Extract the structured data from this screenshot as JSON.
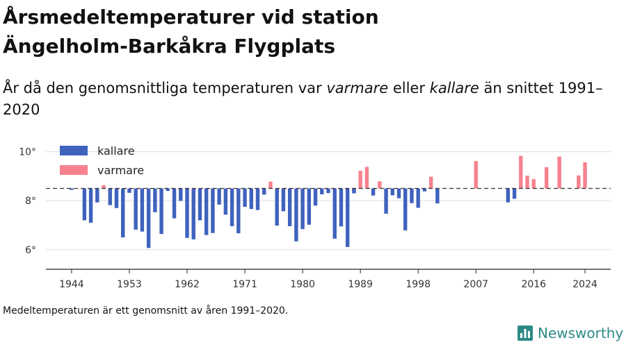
{
  "title_line1": "Årsmedeltemperaturer vid station",
  "title_line2": "Ängelholm-Barkåkra Flygplats",
  "subtitle": {
    "part1": "År då den genomsnittliga temperaturen var ",
    "warm": "varmare",
    "part2": " eller ",
    "cold": "kallare",
    "part3": " än snittet 1991–2020"
  },
  "note": "Medeltemperaturen är ett genomsnitt av åren 1991–2020.",
  "brand": {
    "name": "Newsworthy",
    "icon": "bar-chart-logo-icon",
    "color": "#2e8a86"
  },
  "chart_data": {
    "type": "bar",
    "baseline": 8.5,
    "baseline_style": "dashed",
    "ylim": [
      5.2,
      10.3
    ],
    "yticks": [
      6,
      8,
      10
    ],
    "ytick_labels": [
      "6°",
      "8°",
      "10°"
    ],
    "xlim": [
      1940,
      2028
    ],
    "xticks": [
      1944,
      1953,
      1962,
      1971,
      1980,
      1989,
      1998,
      2007,
      2016,
      2024
    ],
    "xtick_labels": [
      "1944",
      "1953",
      "1962",
      "1971",
      "1980",
      "1989",
      "1998",
      "2007",
      "2016",
      "2024"
    ],
    "grid": true,
    "legend": {
      "placement": "top-left",
      "entries": [
        {
          "name": "kallare",
          "color": "#3f62bd"
        },
        {
          "name": "varmare",
          "color": "#f7828e"
        }
      ]
    },
    "colors": {
      "kallare": "#3f62bd",
      "varmare": "#f7828e"
    },
    "x": [
      1944,
      1946,
      1947,
      1948,
      1949,
      1950,
      1951,
      1952,
      1953,
      1954,
      1955,
      1956,
      1957,
      1958,
      1959,
      1960,
      1961,
      1962,
      1963,
      1964,
      1965,
      1966,
      1967,
      1968,
      1969,
      1970,
      1971,
      1972,
      1973,
      1974,
      1975,
      1976,
      1977,
      1978,
      1979,
      1980,
      1981,
      1982,
      1983,
      1984,
      1985,
      1986,
      1987,
      1988,
      1989,
      1990,
      1991,
      1992,
      1993,
      1994,
      1995,
      1996,
      1997,
      1998,
      1999,
      2000,
      2001,
      2007,
      2012,
      2013,
      2014,
      2015,
      2016,
      2018,
      2020,
      2023,
      2024
    ],
    "values": [
      8.44,
      7.2,
      7.1,
      7.93,
      8.63,
      7.82,
      7.7,
      6.5,
      8.32,
      6.82,
      6.74,
      6.07,
      7.53,
      6.64,
      8.4,
      7.28,
      7.99,
      6.48,
      6.42,
      7.2,
      6.6,
      6.68,
      7.84,
      7.43,
      6.96,
      6.67,
      7.75,
      7.66,
      7.62,
      8.25,
      8.78,
      6.98,
      7.57,
      6.96,
      6.34,
      6.84,
      7.02,
      7.8,
      8.26,
      8.31,
      6.45,
      6.95,
      6.11,
      8.3,
      9.22,
      9.38,
      8.21,
      8.79,
      7.47,
      8.22,
      8.1,
      6.79,
      7.9,
      7.71,
      8.38,
      8.98,
      7.89,
      9.62,
      7.93,
      8.08,
      9.83,
      9.02,
      8.88,
      9.37,
      9.8,
      9.03,
      9.57
    ]
  }
}
